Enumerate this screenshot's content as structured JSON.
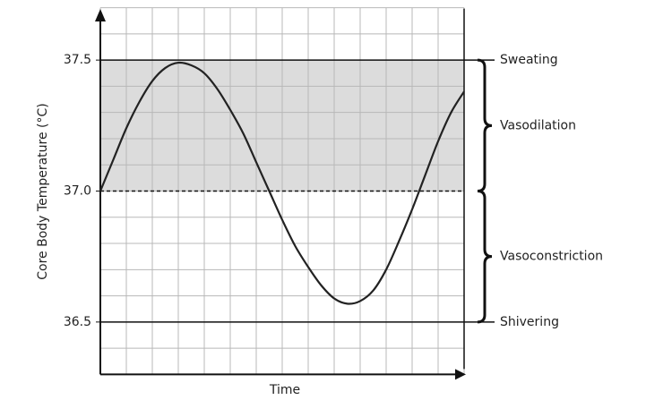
{
  "chart_data": {
    "type": "line",
    "xlabel": "Time",
    "ylabel": "Core Body Temperature (°C)",
    "x": [
      0,
      0.5,
      1,
      1.5,
      2,
      2.5,
      3,
      3.5,
      4,
      4.5,
      5,
      5.5,
      6,
      6.5,
      7,
      7.5,
      8,
      8.5,
      9,
      9.5,
      10,
      10.5,
      11,
      11.5,
      12,
      12.5,
      13,
      13.5,
      14
    ],
    "values": [
      37.0,
      37.12,
      37.24,
      37.34,
      37.42,
      37.47,
      37.49,
      37.48,
      37.45,
      37.39,
      37.31,
      37.22,
      37.11,
      37.0,
      36.89,
      36.79,
      36.71,
      36.64,
      36.59,
      36.57,
      36.58,
      36.62,
      36.7,
      36.81,
      36.93,
      37.06,
      37.19,
      37.3,
      37.38
    ],
    "color": "#222222",
    "xlim": [
      0,
      14
    ],
    "ylim": [
      36.3,
      37.7
    ],
    "yticks": [
      {
        "value": 36.5,
        "label": "36.5"
      },
      {
        "value": 37,
        "label": "37.0"
      },
      {
        "value": 37.5,
        "label": "37.5"
      }
    ],
    "xgrid": [
      0,
      1,
      2,
      3,
      4,
      5,
      6,
      7,
      8,
      9,
      10,
      11,
      12,
      13,
      14
    ],
    "ygrid": [
      36.3,
      36.4,
      36.5,
      36.6,
      36.7,
      36.8,
      36.9,
      37.0,
      37.1,
      37.2,
      37.3,
      37.4,
      37.5,
      37.6,
      37.7
    ],
    "band": [
      37.0,
      37.5
    ],
    "reference_lines": [
      {
        "y": 37.5,
        "style": "solid"
      },
      {
        "y": 37.0,
        "style": "dashed"
      },
      {
        "y": 36.5,
        "style": "solid"
      }
    ],
    "annotations": [
      {
        "text": "Sweating",
        "y": 37.5
      },
      {
        "text": "Vasodilation",
        "range": [
          37.0,
          37.5
        ]
      },
      {
        "text": "Vasoconstriction",
        "range": [
          36.5,
          37.0
        ]
      },
      {
        "text": "Shivering",
        "y": 36.5
      }
    ]
  }
}
